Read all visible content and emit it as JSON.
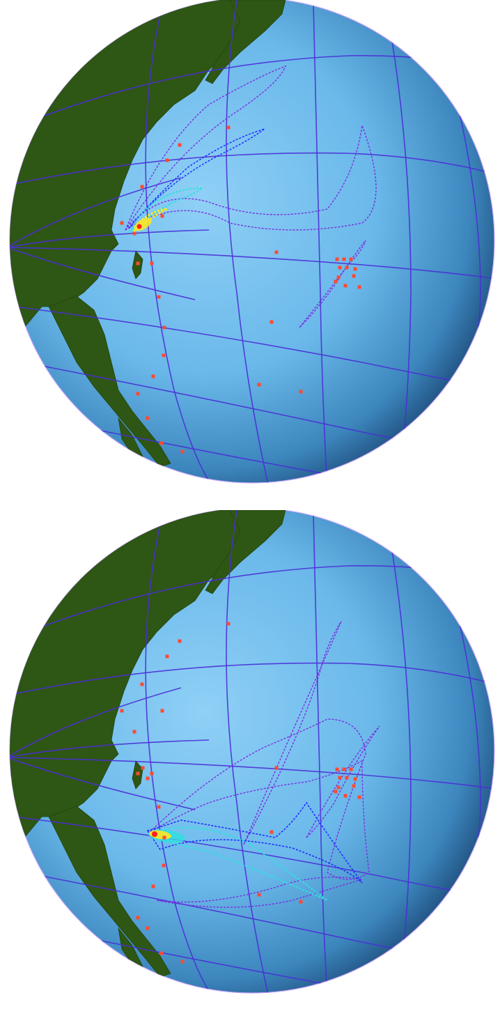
{
  "colors": {
    "ocean_light": "#8fd0f6",
    "ocean_mid": "#4fa6d8",
    "ocean_dark": "#1d4a78",
    "land": "#2e5614",
    "graticule": "#4a2fd6",
    "station": "#ff4a30",
    "contour_outer": "#7a30e0",
    "contour_mid": "#2030ff",
    "contour_inner": "#30e0e0",
    "hotspot_core": "#ffe820",
    "hotspot_center": "#ff2020"
  },
  "globes": [
    {
      "name": "top",
      "plume_region": "east-china-coast"
    },
    {
      "name": "bottom",
      "plume_region": "philippine-sea"
    }
  ]
}
